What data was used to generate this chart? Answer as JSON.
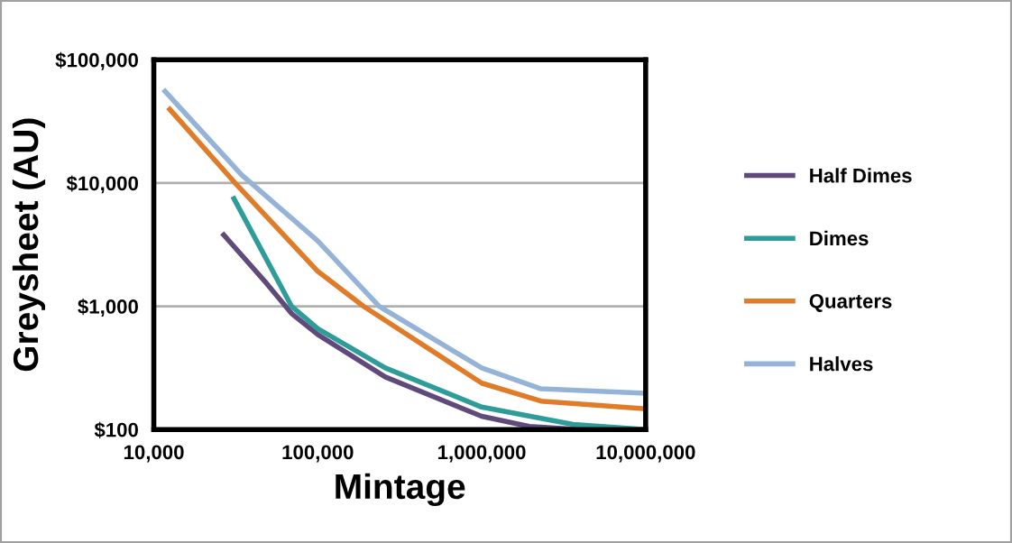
{
  "chart_data": {
    "type": "line",
    "xlabel": "Mintage",
    "ylabel": "Greysheet (AU)",
    "log": "xy",
    "grid": "y",
    "legend": "right",
    "marker": "none",
    "line_style": "solid",
    "xlim": [
      10000,
      10000000
    ],
    "xticks": [
      {
        "value": 10000,
        "label": "10,000"
      },
      {
        "value": 100000,
        "label": "100,000"
      },
      {
        "value": 1000000,
        "label": "1,000,000"
      },
      {
        "value": 10000000,
        "label": "10,000,000"
      }
    ],
    "ylim": [
      100,
      100000
    ],
    "yticks": [
      {
        "value": 100,
        "label": "$100"
      },
      {
        "value": 1000,
        "label": "$1,000"
      },
      {
        "value": 10000,
        "label": "$10,000"
      },
      {
        "value": 100000,
        "label": "$100,000"
      }
    ],
    "series": [
      {
        "name": "Half Dimes",
        "color": "#604a7b",
        "x": [
          26700,
          48600,
          69200,
          100000,
          258000,
          1000000,
          1950000,
          4000000,
          10000000
        ],
        "values": [
          3790,
          1540,
          873,
          589,
          267,
          128,
          106,
          100,
          100
        ]
      },
      {
        "name": "Dimes",
        "color": "#2e9c98",
        "x": [
          30800,
          48600,
          69200,
          100000,
          258000,
          1000000,
          3600000,
          10000000
        ],
        "values": [
          7470,
          2410,
          1000,
          659,
          316,
          152,
          110,
          100
        ]
      },
      {
        "name": "Quarters",
        "color": "#e07b28",
        "x": [
          12500,
          31300,
          100000,
          190000,
          1000000,
          2300000,
          10000000
        ],
        "values": [
          39600,
          10000,
          1920,
          1000,
          238,
          170,
          147
        ]
      },
      {
        "name": "Halves",
        "color": "#95b3d7",
        "x": [
          11700,
          34200,
          100000,
          237000,
          1000000,
          2300000,
          10000000
        ],
        "values": [
          55600,
          11700,
          3390,
          1000,
          316,
          214,
          197
        ]
      }
    ]
  }
}
